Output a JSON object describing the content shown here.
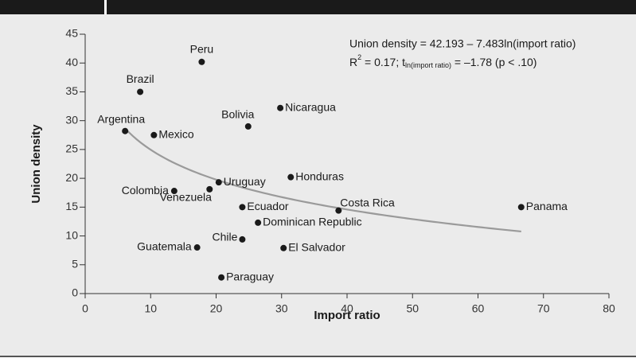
{
  "chart_data": {
    "type": "scatter",
    "x_label": "Import ratio",
    "y_label": "Union density",
    "annotation_line1": "Union density = 42.193 – 7.483ln(import ratio)",
    "annotation_line2": [
      "R",
      "2",
      " = 0.17; t",
      "ln(import ratio)",
      " = –1.78 (p < .10)"
    ],
    "fit": {
      "intercept": 42.193,
      "slope": -7.483,
      "color": "#9a9a9a"
    },
    "labels": [
      "Peru",
      "Brazil",
      "Argentina",
      "Mexico",
      "Bolivia",
      "Nicaragua",
      "Uruguay",
      "Honduras",
      "Colombia",
      "Venezuela",
      "Ecuador",
      "Costa Rica",
      "Panama",
      "Dominican Republic",
      "Chile",
      "El Salvador",
      "Guatemala",
      "Paraguay"
    ],
    "x": [
      17.8,
      8.4,
      6.1,
      10.5,
      24.9,
      29.8,
      20.4,
      31.4,
      13.6,
      19.0,
      24.0,
      38.7,
      66.6,
      26.4,
      24.0,
      30.3,
      17.1,
      20.8
    ],
    "values": [
      40.2,
      35.0,
      28.2,
      27.5,
      29.0,
      32.2,
      19.3,
      20.2,
      17.8,
      18.1,
      15.0,
      14.4,
      15.0,
      12.3,
      9.4,
      7.9,
      8.0,
      2.8
    ],
    "color": "#1a1a1a",
    "xlim": [
      0,
      80
    ],
    "xticks": [
      0,
      10,
      20,
      30,
      40,
      50,
      60,
      70,
      80
    ],
    "ylim": [
      0,
      45
    ],
    "yticks": [
      0,
      5,
      10,
      15,
      20,
      25,
      30,
      35,
      40,
      45
    ]
  }
}
